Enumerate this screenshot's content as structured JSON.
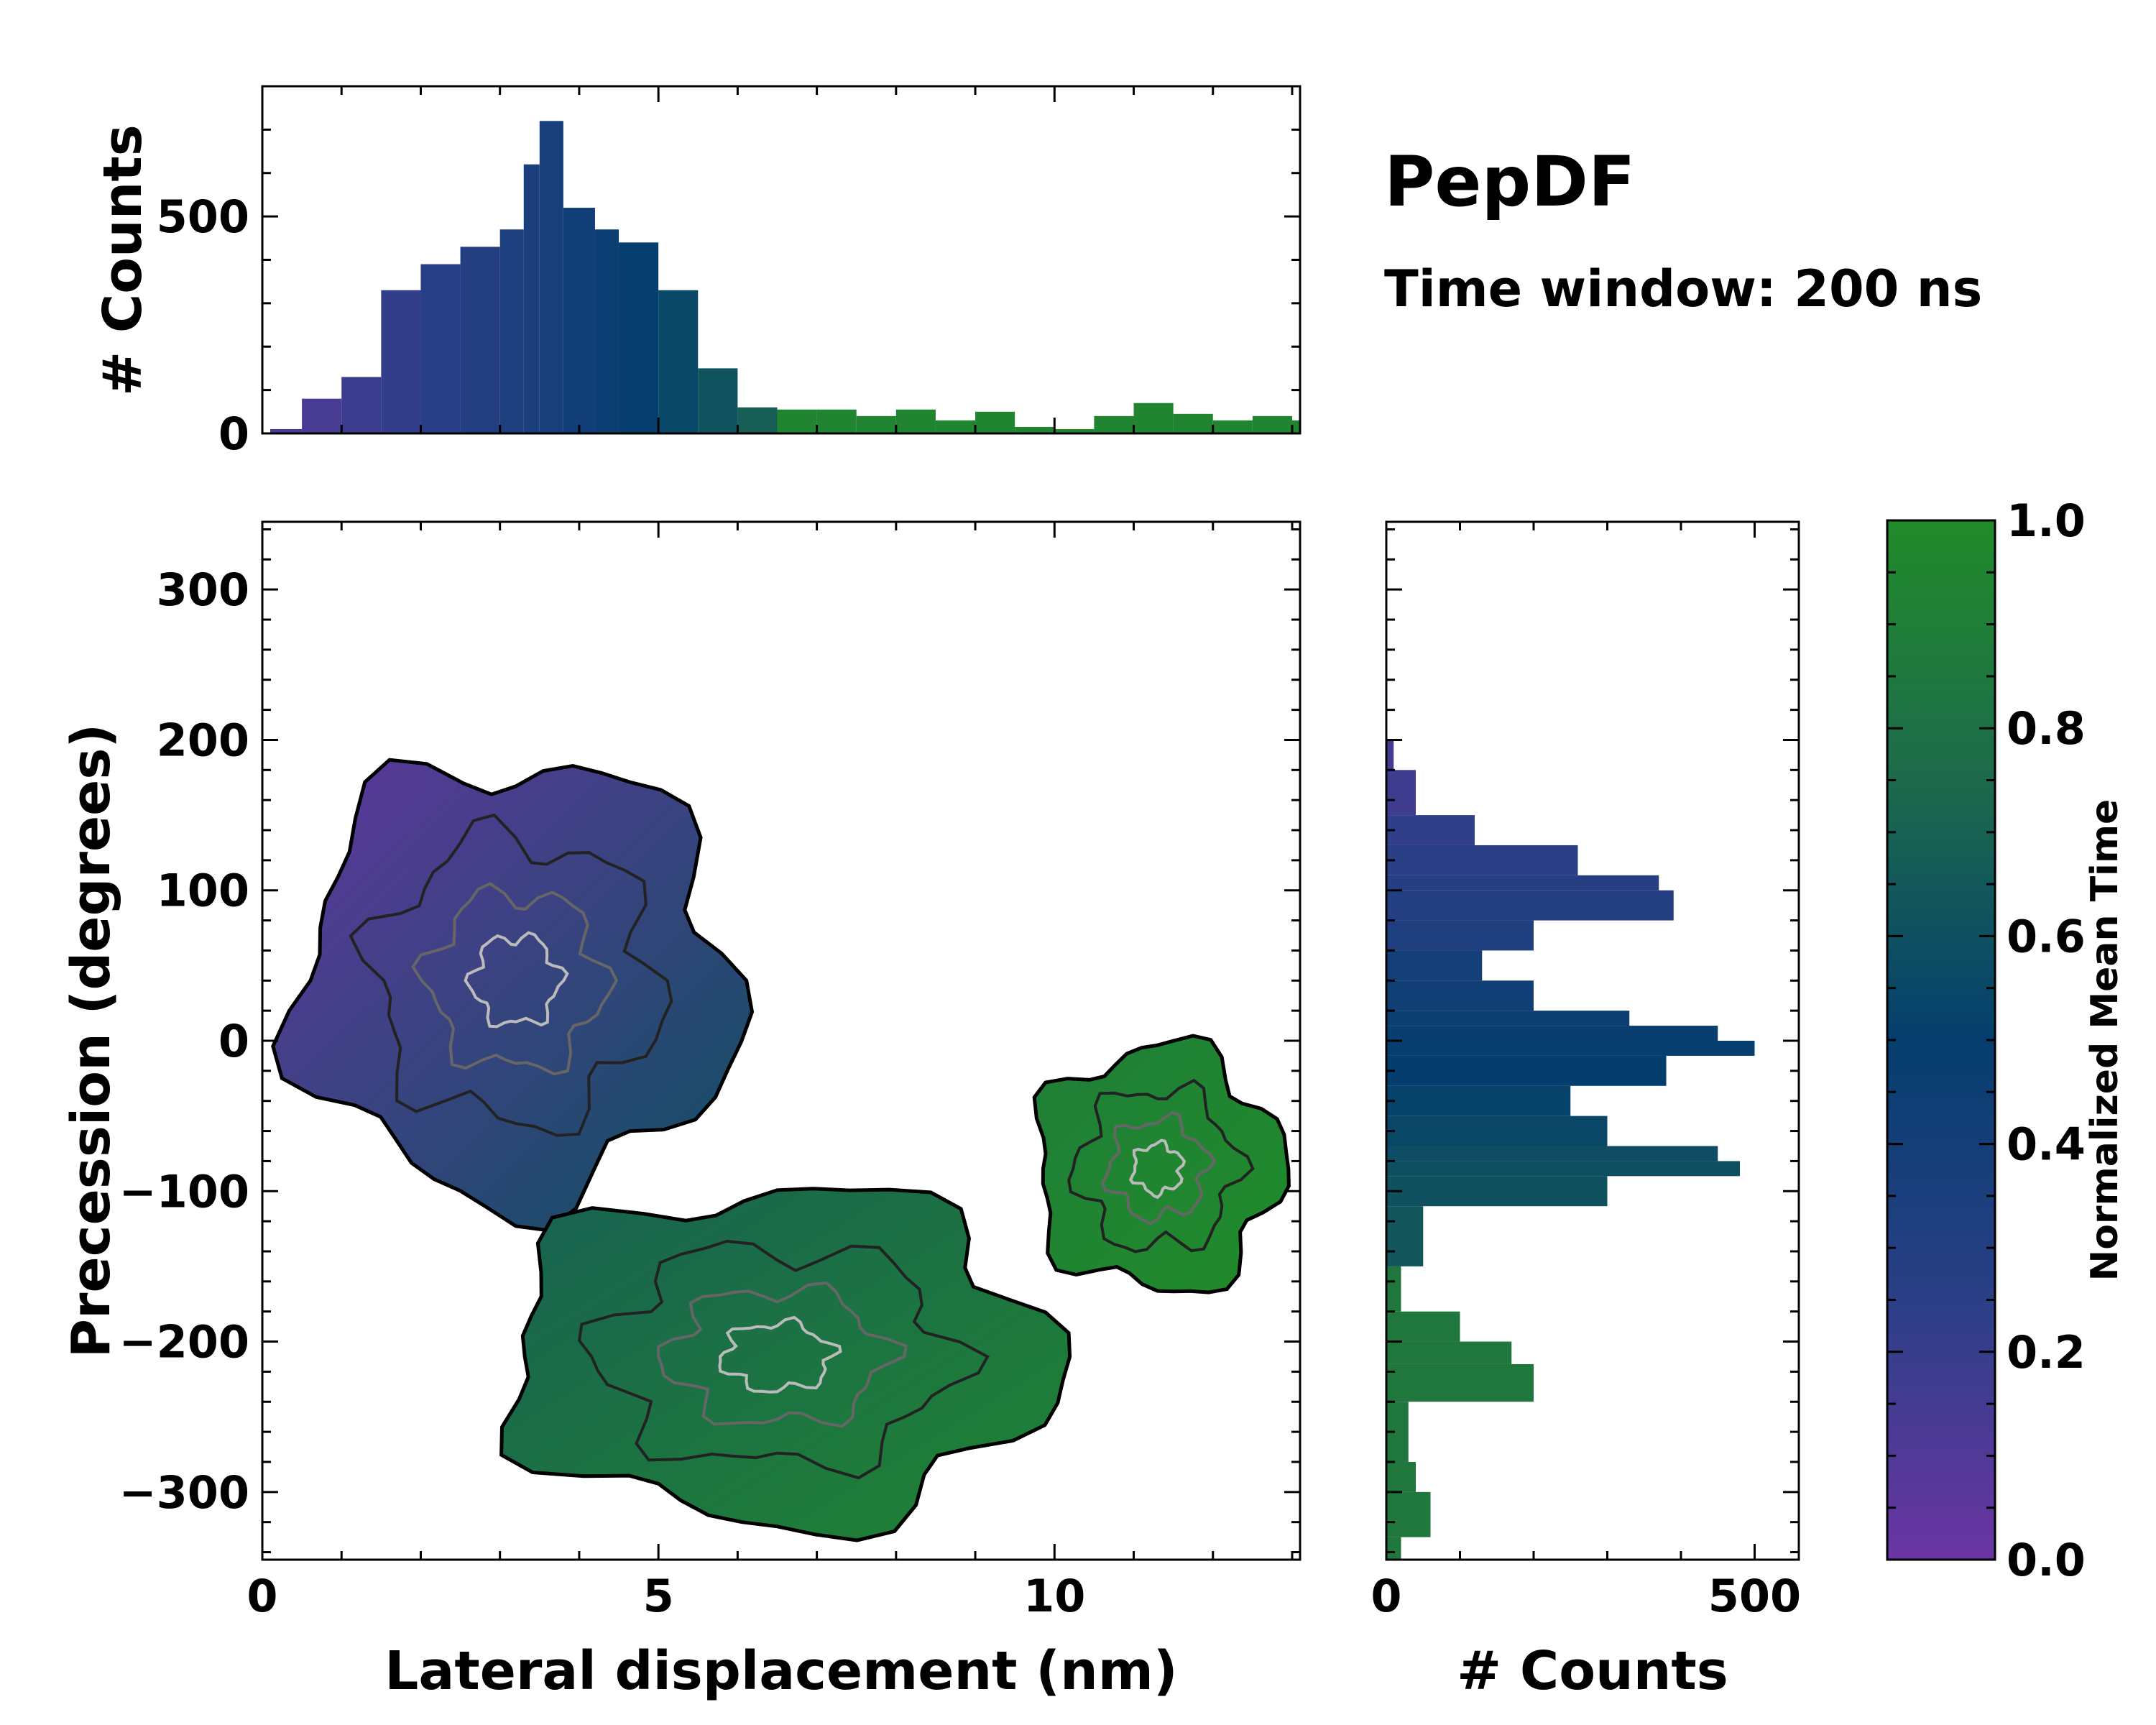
{
  "chart_data": [
    {
      "type": "heatmap",
      "name": "joint-density-map",
      "xlabel": "Lateral displacement (nm)",
      "ylabel": "Precession (degrees)",
      "xlim": [
        0,
        13.1
      ],
      "ylim": [
        -345,
        345
      ],
      "xticks": [
        "0",
        "5",
        "10"
      ],
      "xtick_values": [
        0,
        5,
        10
      ],
      "yticks": [
        "300",
        "200",
        "100",
        "0",
        "−100",
        "−200",
        "−300"
      ],
      "ytick_values": [
        300,
        200,
        100,
        0,
        -100,
        -200,
        -300
      ],
      "contours": true,
      "color_by": "Normalized Mean Time",
      "regions": [
        {
          "x": [
            0,
            6.4
          ],
          "y": [
            -130,
            210
          ],
          "time_range": [
            0.05,
            0.6
          ]
        },
        {
          "x": [
            2.5,
            10.5
          ],
          "y": [
            -340,
            -80
          ],
          "time_range": [
            0.7,
            0.95
          ]
        },
        {
          "x": [
            9.5,
            13.1
          ],
          "y": [
            -180,
            10
          ],
          "time_range": [
            0.9,
            1.0
          ]
        }
      ]
    },
    {
      "type": "bar",
      "name": "x-marginal-histogram",
      "ylabel": "# Counts",
      "xlim": [
        0,
        13.1
      ],
      "ylim": [
        0,
        800
      ],
      "yticks": [
        "0",
        "500"
      ],
      "ytick_values": [
        0,
        500
      ],
      "x": [
        0.1,
        0.5,
        1.0,
        1.5,
        2.0,
        2.5,
        3.0,
        3.3,
        3.5,
        3.8,
        4.2,
        4.5,
        5.0,
        5.5,
        6.0,
        6.5,
        7.0,
        7.5,
        8.0,
        8.5,
        9.0,
        9.5,
        10.0,
        10.5,
        11.0,
        11.5,
        12.0,
        12.5,
        13.0
      ],
      "values": [
        10,
        80,
        130,
        330,
        390,
        430,
        470,
        620,
        720,
        520,
        470,
        440,
        330,
        150,
        60,
        55,
        55,
        40,
        55,
        30,
        50,
        15,
        10,
        40,
        70,
        45,
        30,
        40,
        30
      ]
    },
    {
      "type": "bar",
      "orientation": "horizontal",
      "name": "y-marginal-histogram",
      "xlabel": "# Counts",
      "xlim": [
        0,
        560
      ],
      "xticks": [
        "0",
        "500"
      ],
      "xtick_values": [
        0,
        500
      ],
      "y": [
        200,
        180,
        150,
        130,
        110,
        100,
        80,
        60,
        40,
        20,
        10,
        0,
        -10,
        -30,
        -50,
        -70,
        -80,
        -90,
        -110,
        -150,
        -180,
        -200,
        -215,
        -240,
        -280,
        -300,
        -330
      ],
      "values": [
        10,
        40,
        120,
        260,
        370,
        390,
        200,
        130,
        200,
        330,
        450,
        500,
        380,
        250,
        300,
        450,
        480,
        300,
        50,
        20,
        100,
        170,
        200,
        30,
        40,
        60,
        20
      ]
    },
    {
      "type": "colorbar",
      "name": "time-colorbar",
      "label": "Normalized Mean Time",
      "range": [
        0.0,
        1.0
      ],
      "ticks": [
        "0.0",
        "0.2",
        "0.4",
        "0.6",
        "0.8",
        "1.0"
      ],
      "tick_values": [
        0.0,
        0.2,
        0.4,
        0.6,
        0.8,
        1.0
      ],
      "colors": [
        "#6b35a3",
        "#2a3f86",
        "#053e6e",
        "#1d6a4c",
        "#218b2a"
      ]
    }
  ],
  "title": "PepDF",
  "subtitle": "Time window: 200 ns"
}
